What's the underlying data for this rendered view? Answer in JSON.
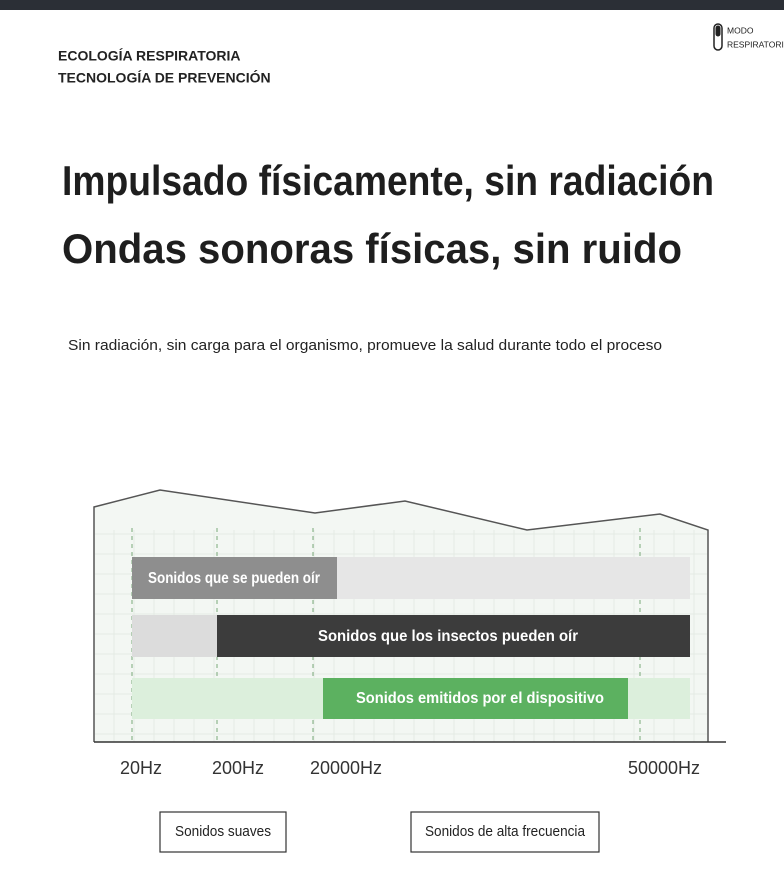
{
  "header": {
    "brand_lines": [
      "ECOLOGÍA RESPIRATORIA",
      "TECNOLOGÍA DE PREVENCIÓN"
    ],
    "mode_label": [
      "MODO",
      "RESPIRATORIO"
    ]
  },
  "headline": [
    "Impulsado físicamente, sin radiación",
    "Ondas sonoras físicas, sin ruido"
  ],
  "subtitle": "Sin radiación, sin carga para el organismo, promueve la salud durante todo el proceso",
  "diagram": {
    "bars": [
      "Sonidos que se pueden oír",
      "Sonidos que los insectos pueden oír",
      "Sonidos emitidos por el dispositivo"
    ],
    "frequencies": [
      "20Hz",
      "200Hz",
      "20000Hz",
      "50000Hz"
    ],
    "ranges": [
      "Sonidos suaves",
      "Sonidos de alta frecuencia"
    ]
  }
}
